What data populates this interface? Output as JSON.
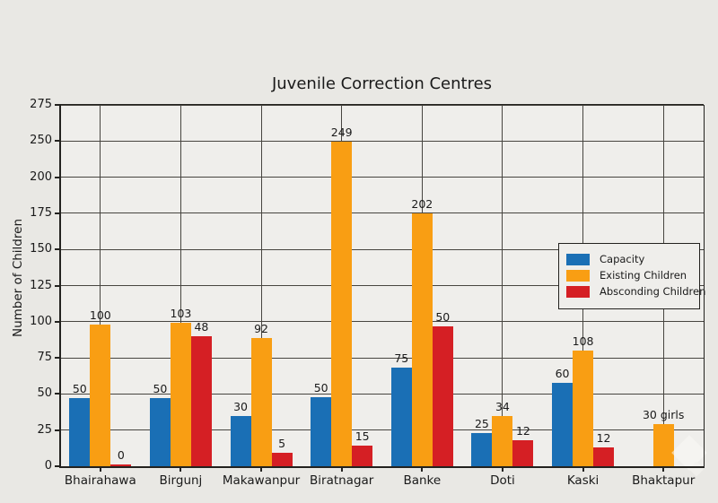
{
  "figure": {
    "bg_color": "#e9e8e4",
    "plot_bg_color": "#efeeeb",
    "grid_color": "#474540",
    "spine_color": "#23221f",
    "text_color": "#1a1a1a"
  },
  "icons": {
    "watermark": "faint-diamond-sparkle"
  },
  "chart_data": {
    "type": "bar",
    "title": "Juvenile Correction Centres",
    "xlabel": "",
    "ylabel": "Number of Children",
    "grid": "on",
    "legend_position": "center-right-inside",
    "categories": [
      "Bhairahawa",
      "Birgunj",
      "Makawanpur",
      "Biratnagar",
      "Banke",
      "Doti",
      "Kaski",
      "Bhaktapur"
    ],
    "y_axis": {
      "label": "Number of Children",
      "ticks": [
        "0",
        "25",
        "50",
        "75",
        "100",
        "125",
        "150",
        "175",
        "200",
        "250",
        "275"
      ],
      "range_shown": [
        0,
        275
      ]
    },
    "series": [
      {
        "name": "Capacity",
        "color": "#1a6fb5",
        "values": [
          50,
          50,
          30,
          50,
          75,
          25,
          60,
          null
        ],
        "bar_labels": [
          "50",
          "50",
          "30",
          "50",
          "75",
          "25",
          "60",
          ""
        ],
        "drawn_heights": [
          47,
          47,
          35,
          48,
          68,
          23,
          58,
          0
        ]
      },
      {
        "name": "Existing Children",
        "color": "#f99e13",
        "values": [
          100,
          103,
          92,
          249,
          202,
          34,
          108,
          30
        ],
        "bar_labels": [
          "100",
          "103",
          "92",
          "249",
          "202",
          "34",
          "108",
          "30 girls"
        ],
        "drawn_heights": [
          98,
          99,
          89,
          249,
          175,
          35,
          80,
          29
        ]
      },
      {
        "name": "Absconding Children",
        "color": "#d51f24",
        "values": [
          0,
          48,
          5,
          15,
          50,
          12,
          12,
          null
        ],
        "bar_labels": [
          "0",
          "48",
          "5",
          "15",
          "50",
          "12",
          "12",
          ""
        ],
        "drawn_heights": [
          1,
          90,
          9,
          14,
          97,
          18,
          13,
          0
        ]
      }
    ]
  }
}
